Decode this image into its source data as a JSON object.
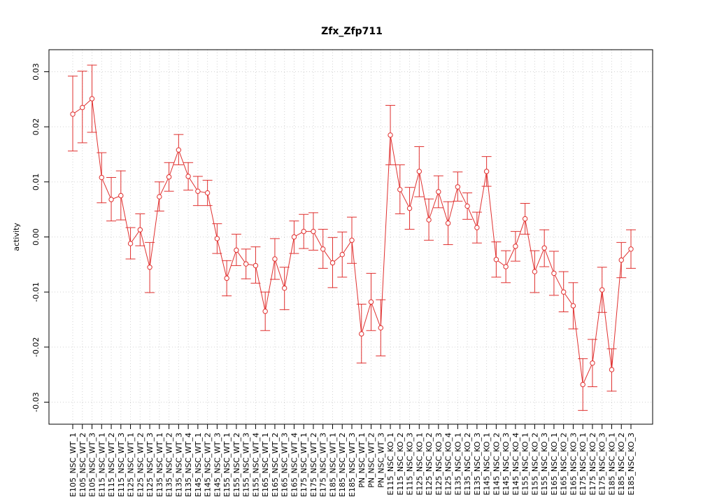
{
  "chart_data": {
    "type": "line",
    "title": "Zfx_Zfp711",
    "xlabel": "",
    "ylabel": "activity",
    "ylim": [
      -0.034,
      0.034
    ],
    "yticks": [
      -0.03,
      -0.02,
      -0.01,
      0.0,
      0.01,
      0.02,
      0.03
    ],
    "ytick_labels": [
      "-0.03",
      "-0.02",
      "-0.01",
      "0.00",
      "0.01",
      "0.02",
      "0.03"
    ],
    "grid": true,
    "color": "#e0302f",
    "categories": [
      "E105_NSC_WT_1",
      "E105_NSC_WT_2",
      "E105_NSC_WT_3",
      "E115_NSC_WT_1",
      "E115_NSC_WT_2",
      "E115_NSC_WT_3",
      "E125_NSC_WT_1",
      "E125_NSC_WT_2",
      "E125_NSC_WT_3",
      "E135_NSC_WT_1",
      "E135_NSC_WT_2",
      "E135_NSC_WT_3",
      "E135_NSC_WT_4",
      "E145_NSC_WT_1",
      "E145_NSC_WT_2",
      "E145_NSC_WT_3",
      "E155_NSC_WT_1",
      "E155_NSC_WT_2",
      "E155_NSC_WT_3",
      "E155_NSC_WT_4",
      "E165_NSC_WT_1",
      "E165_NSC_WT_2",
      "E165_NSC_WT_3",
      "E165_NSC_WT_4",
      "E175_NSC_WT_1",
      "E175_NSC_WT_2",
      "E175_NSC_WT_3",
      "E185_NSC_WT_1",
      "E185_NSC_WT_2",
      "E185_NSC_WT_3",
      "PN_NSC_WT_1",
      "PN_NSC_WT_2",
      "PN_NSC_WT_3",
      "E115_NSC_KO_1",
      "E115_NSC_KO_2",
      "E115_NSC_KO_3",
      "E125_NSC_KO_1",
      "E125_NSC_KO_2",
      "E125_NSC_KO_3",
      "E125_NSC_KO_4",
      "E135_NSC_KO_1",
      "E135_NSC_KO_2",
      "E135_NSC_KO_3",
      "E145_NSC_KO_1",
      "E145_NSC_KO_2",
      "E145_NSC_KO_3",
      "E145_NSC_KO_4",
      "E155_NSC_KO_1",
      "E155_NSC_KO_2",
      "E155_NSC_KO_3",
      "E165_NSC_KO_1",
      "E165_NSC_KO_2",
      "E165_NSC_KO_3",
      "E175_NSC_KO_1",
      "E175_NSC_KO_2",
      "E175_NSC_KO_3",
      "E185_NSC_KO_1",
      "E185_NSC_KO_2",
      "E185_NSC_KO_3"
    ],
    "series": [
      {
        "values": [
          0.0223,
          0.0235,
          0.0251,
          0.0108,
          0.0068,
          0.0075,
          -0.0012,
          0.0013,
          -0.0055,
          0.0073,
          0.0109,
          0.0158,
          0.011,
          0.0083,
          0.008,
          -0.0003,
          -0.0075,
          -0.0024,
          -0.0049,
          -0.0052,
          -0.0135,
          -0.004,
          -0.0093,
          0.0,
          0.001,
          0.001,
          -0.0022,
          -0.0047,
          -0.0032,
          -0.0006,
          -0.0176,
          -0.0118,
          -0.0165,
          0.0185,
          0.0086,
          0.0052,
          0.0119,
          0.0031,
          0.0082,
          0.0025,
          0.0091,
          0.0056,
          0.0017,
          0.0119,
          -0.0041,
          -0.0054,
          -0.0017,
          0.0033,
          -0.0063,
          -0.002,
          -0.0066,
          -0.01,
          -0.0125,
          -0.0268,
          -0.0229,
          -0.0096,
          -0.0241,
          -0.0042,
          -0.0022
        ],
        "err_low": [
          0.0156,
          0.0171,
          0.019,
          0.0062,
          0.0029,
          0.0031,
          -0.004,
          -0.0016,
          -0.0101,
          0.0047,
          0.0083,
          0.0131,
          0.0085,
          0.0057,
          0.0057,
          -0.003,
          -0.0107,
          -0.0052,
          -0.0076,
          -0.0084,
          -0.017,
          -0.0077,
          -0.0132,
          -0.003,
          -0.0021,
          -0.0024,
          -0.0057,
          -0.0092,
          -0.0073,
          -0.0048,
          -0.0229,
          -0.017,
          -0.0216,
          0.0131,
          0.0042,
          0.0014,
          0.0073,
          -0.0006,
          0.0053,
          -0.0014,
          0.0065,
          0.0032,
          -0.0011,
          0.0092,
          -0.0073,
          -0.0083,
          -0.0044,
          0.0005,
          -0.0101,
          -0.0054,
          -0.0106,
          -0.0136,
          -0.0167,
          -0.0315,
          -0.0272,
          -0.0137,
          -0.028,
          -0.0074,
          -0.0057
        ],
        "err_high": [
          0.0292,
          0.0301,
          0.0312,
          0.0153,
          0.0108,
          0.012,
          0.0017,
          0.0042,
          -0.001,
          0.01,
          0.0135,
          0.0186,
          0.0135,
          0.011,
          0.0103,
          0.0024,
          -0.0043,
          0.0005,
          -0.0022,
          -0.0018,
          -0.01,
          -0.0003,
          -0.0055,
          0.0029,
          0.0041,
          0.0044,
          0.0014,
          -0.0001,
          0.0009,
          0.0036,
          -0.0122,
          -0.0066,
          -0.0114,
          0.0239,
          0.0131,
          0.009,
          0.0164,
          0.0069,
          0.0111,
          0.0064,
          0.0118,
          0.008,
          0.0045,
          0.0146,
          -0.0009,
          -0.0025,
          0.001,
          0.0061,
          -0.0025,
          0.0013,
          -0.0026,
          -0.0063,
          -0.0083,
          -0.0221,
          -0.0186,
          -0.0055,
          -0.0203,
          -0.001,
          0.0013
        ]
      }
    ]
  }
}
